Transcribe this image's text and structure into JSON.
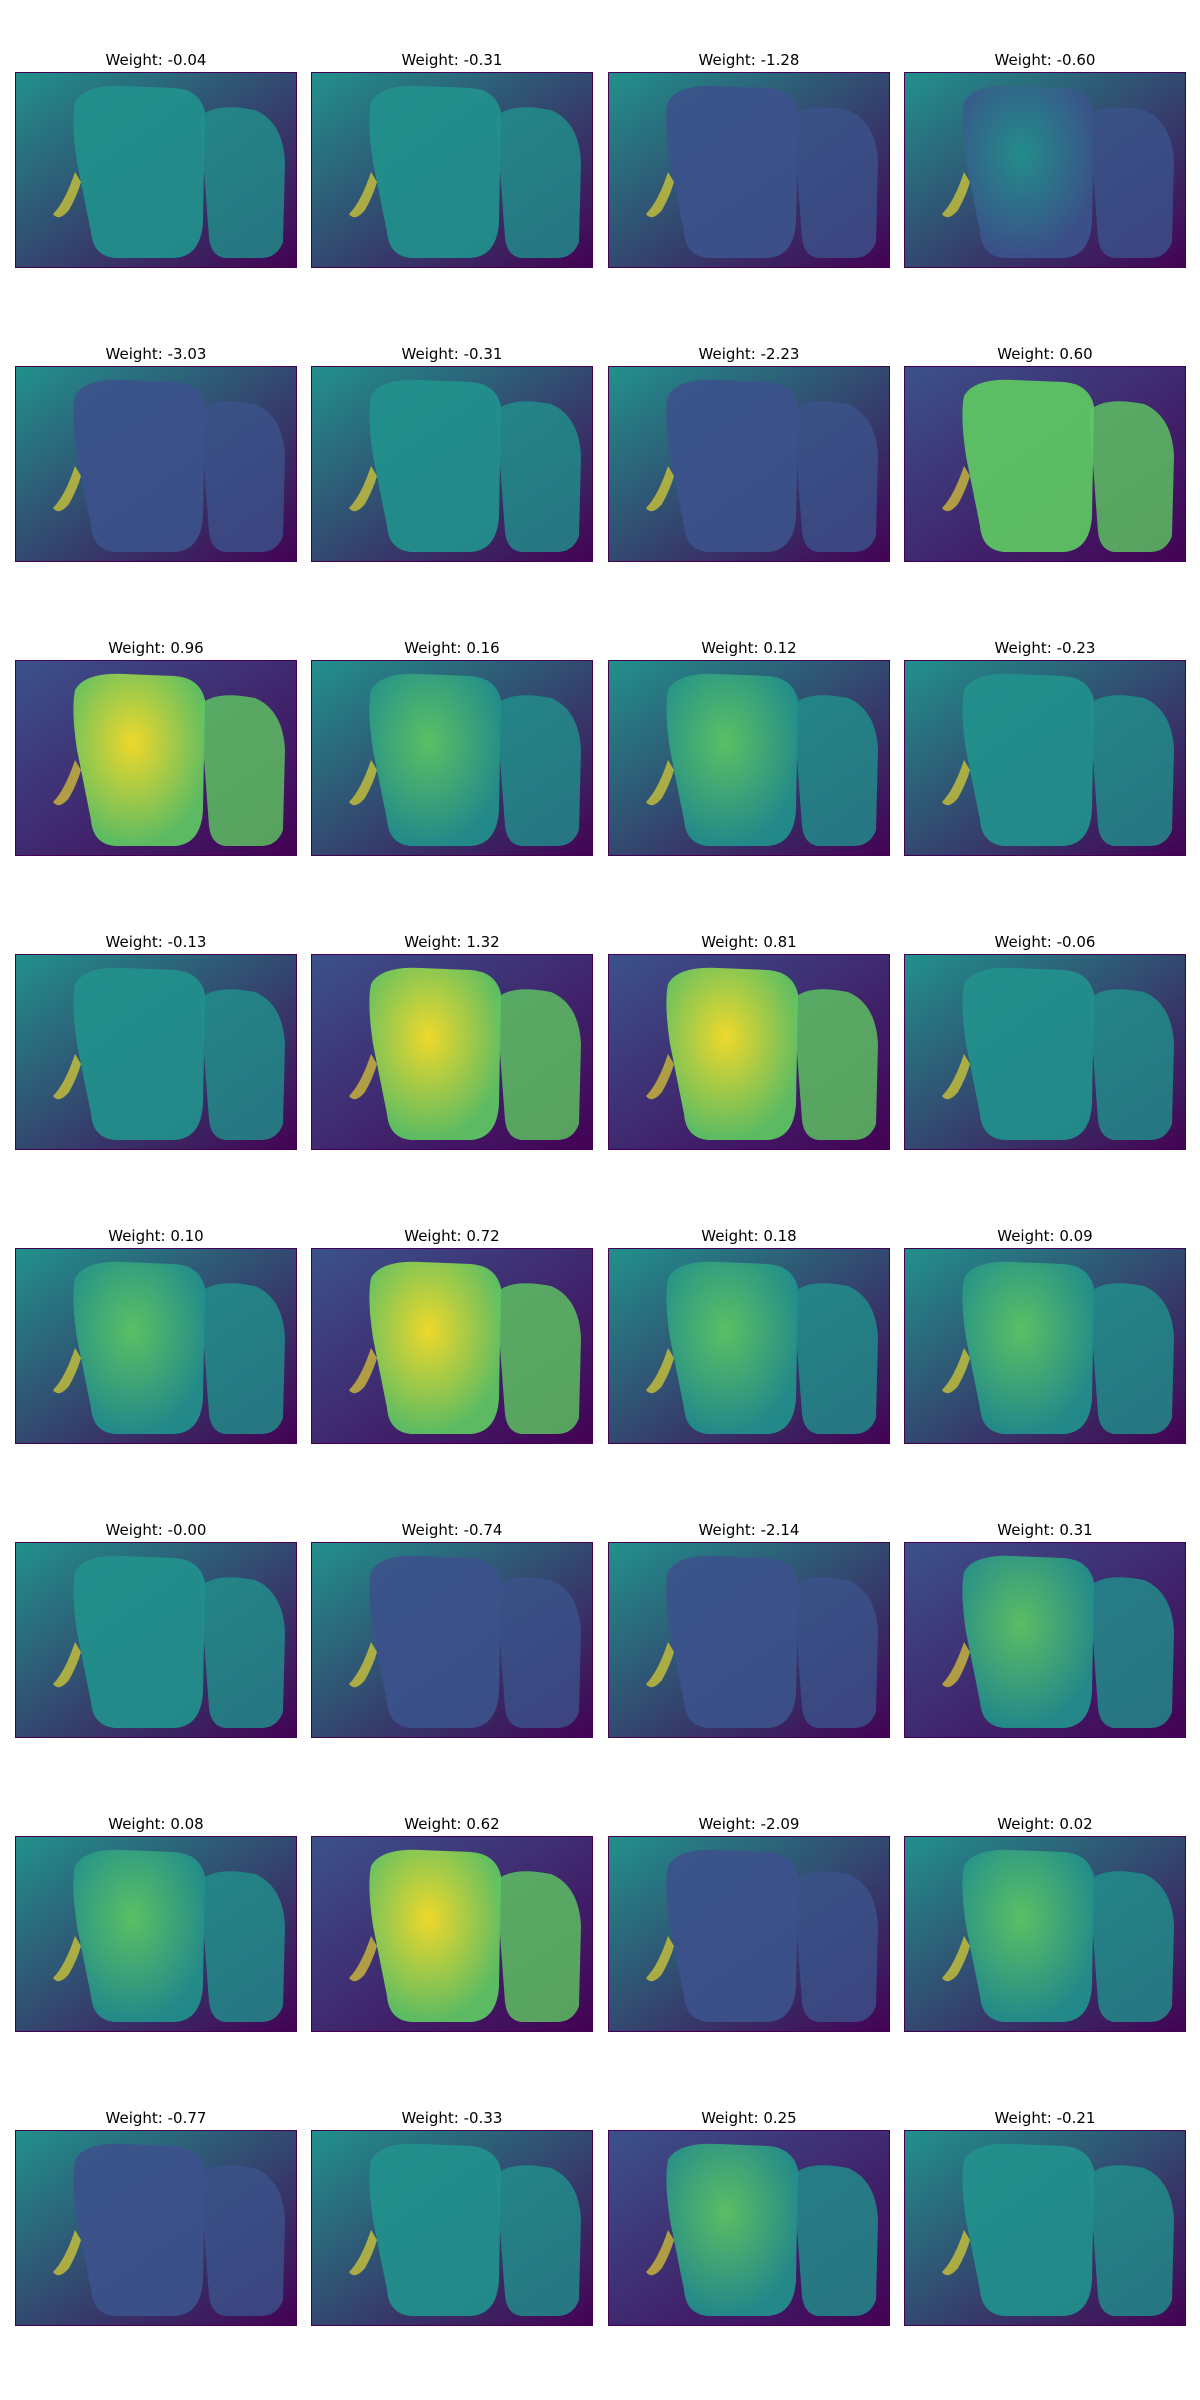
{
  "colormap": {
    "name": "viridis",
    "low": "#440154",
    "mid_low": "#3b528b",
    "mid": "#21918c",
    "mid_high": "#5ec962",
    "high": "#fde725"
  },
  "title_prefix": "Weight:",
  "panels": [
    {
      "title": "Weight: -0.04",
      "weight": -0.04
    },
    {
      "title": "Weight: -0.31",
      "weight": -0.31
    },
    {
      "title": "Weight: -1.28",
      "weight": -1.28
    },
    {
      "title": "Weight: -0.60",
      "weight": -0.6
    },
    {
      "title": "Weight: -3.03",
      "weight": -3.03
    },
    {
      "title": "Weight: -0.31",
      "weight": -0.31
    },
    {
      "title": "Weight: -2.23",
      "weight": -2.23
    },
    {
      "title": "Weight: 0.60",
      "weight": 0.6
    },
    {
      "title": "Weight: 0.96",
      "weight": 0.96
    },
    {
      "title": "Weight: 0.16",
      "weight": 0.16
    },
    {
      "title": "Weight: 0.12",
      "weight": 0.12
    },
    {
      "title": "Weight: -0.23",
      "weight": -0.23
    },
    {
      "title": "Weight: -0.13",
      "weight": -0.13
    },
    {
      "title": "Weight: 1.32",
      "weight": 1.32
    },
    {
      "title": "Weight: 0.81",
      "weight": 0.81
    },
    {
      "title": "Weight: -0.06",
      "weight": -0.06
    },
    {
      "title": "Weight: 0.10",
      "weight": 0.1
    },
    {
      "title": "Weight: 0.72",
      "weight": 0.72
    },
    {
      "title": "Weight: 0.18",
      "weight": 0.18
    },
    {
      "title": "Weight: 0.09",
      "weight": 0.09
    },
    {
      "title": "Weight: -0.00",
      "weight": -0.0
    },
    {
      "title": "Weight: -0.74",
      "weight": -0.74
    },
    {
      "title": "Weight: -2.14",
      "weight": -2.14
    },
    {
      "title": "Weight: 0.31",
      "weight": 0.31
    },
    {
      "title": "Weight: 0.08",
      "weight": 0.08
    },
    {
      "title": "Weight: 0.62",
      "weight": 0.62
    },
    {
      "title": "Weight: -2.09",
      "weight": -2.09
    },
    {
      "title": "Weight: 0.02",
      "weight": 0.02
    },
    {
      "title": "Weight: -0.77",
      "weight": -0.77
    },
    {
      "title": "Weight: -0.33",
      "weight": -0.33
    },
    {
      "title": "Weight: 0.25",
      "weight": 0.25
    },
    {
      "title": "Weight: -0.21",
      "weight": -0.21
    }
  ]
}
